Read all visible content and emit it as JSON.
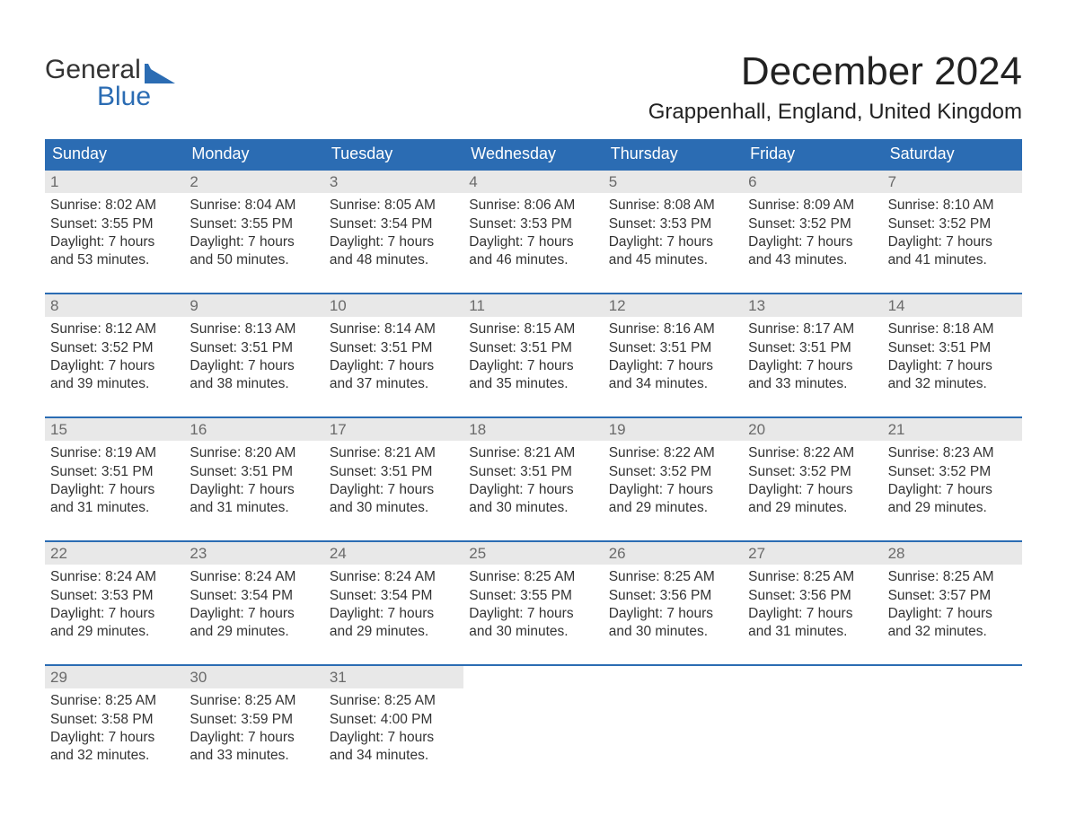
{
  "brand": {
    "word1": "General",
    "word2": "Blue",
    "logo_color": "#2b6cb3"
  },
  "title": "December 2024",
  "location": "Grappenhall, England, United Kingdom",
  "colors": {
    "header_bg": "#2b6cb3",
    "header_text": "#ffffff",
    "daynum_bg": "#e8e8e8",
    "daynum_text": "#6a6a6a",
    "body_text": "#333333",
    "cell_border": "#2b6cb3"
  },
  "days_of_week": [
    "Sunday",
    "Monday",
    "Tuesday",
    "Wednesday",
    "Thursday",
    "Friday",
    "Saturday"
  ],
  "grid": {
    "columns": 7,
    "rows": 5,
    "start_day_index": 0
  },
  "days": [
    {
      "n": 1,
      "sunrise": "8:02 AM",
      "sunset": "3:55 PM",
      "daylight_l1": "Daylight: 7 hours",
      "daylight_l2": "and 53 minutes."
    },
    {
      "n": 2,
      "sunrise": "8:04 AM",
      "sunset": "3:55 PM",
      "daylight_l1": "Daylight: 7 hours",
      "daylight_l2": "and 50 minutes."
    },
    {
      "n": 3,
      "sunrise": "8:05 AM",
      "sunset": "3:54 PM",
      "daylight_l1": "Daylight: 7 hours",
      "daylight_l2": "and 48 minutes."
    },
    {
      "n": 4,
      "sunrise": "8:06 AM",
      "sunset": "3:53 PM",
      "daylight_l1": "Daylight: 7 hours",
      "daylight_l2": "and 46 minutes."
    },
    {
      "n": 5,
      "sunrise": "8:08 AM",
      "sunset": "3:53 PM",
      "daylight_l1": "Daylight: 7 hours",
      "daylight_l2": "and 45 minutes."
    },
    {
      "n": 6,
      "sunrise": "8:09 AM",
      "sunset": "3:52 PM",
      "daylight_l1": "Daylight: 7 hours",
      "daylight_l2": "and 43 minutes."
    },
    {
      "n": 7,
      "sunrise": "8:10 AM",
      "sunset": "3:52 PM",
      "daylight_l1": "Daylight: 7 hours",
      "daylight_l2": "and 41 minutes."
    },
    {
      "n": 8,
      "sunrise": "8:12 AM",
      "sunset": "3:52 PM",
      "daylight_l1": "Daylight: 7 hours",
      "daylight_l2": "and 39 minutes."
    },
    {
      "n": 9,
      "sunrise": "8:13 AM",
      "sunset": "3:51 PM",
      "daylight_l1": "Daylight: 7 hours",
      "daylight_l2": "and 38 minutes."
    },
    {
      "n": 10,
      "sunrise": "8:14 AM",
      "sunset": "3:51 PM",
      "daylight_l1": "Daylight: 7 hours",
      "daylight_l2": "and 37 minutes."
    },
    {
      "n": 11,
      "sunrise": "8:15 AM",
      "sunset": "3:51 PM",
      "daylight_l1": "Daylight: 7 hours",
      "daylight_l2": "and 35 minutes."
    },
    {
      "n": 12,
      "sunrise": "8:16 AM",
      "sunset": "3:51 PM",
      "daylight_l1": "Daylight: 7 hours",
      "daylight_l2": "and 34 minutes."
    },
    {
      "n": 13,
      "sunrise": "8:17 AM",
      "sunset": "3:51 PM",
      "daylight_l1": "Daylight: 7 hours",
      "daylight_l2": "and 33 minutes."
    },
    {
      "n": 14,
      "sunrise": "8:18 AM",
      "sunset": "3:51 PM",
      "daylight_l1": "Daylight: 7 hours",
      "daylight_l2": "and 32 minutes."
    },
    {
      "n": 15,
      "sunrise": "8:19 AM",
      "sunset": "3:51 PM",
      "daylight_l1": "Daylight: 7 hours",
      "daylight_l2": "and 31 minutes."
    },
    {
      "n": 16,
      "sunrise": "8:20 AM",
      "sunset": "3:51 PM",
      "daylight_l1": "Daylight: 7 hours",
      "daylight_l2": "and 31 minutes."
    },
    {
      "n": 17,
      "sunrise": "8:21 AM",
      "sunset": "3:51 PM",
      "daylight_l1": "Daylight: 7 hours",
      "daylight_l2": "and 30 minutes."
    },
    {
      "n": 18,
      "sunrise": "8:21 AM",
      "sunset": "3:51 PM",
      "daylight_l1": "Daylight: 7 hours",
      "daylight_l2": "and 30 minutes."
    },
    {
      "n": 19,
      "sunrise": "8:22 AM",
      "sunset": "3:52 PM",
      "daylight_l1": "Daylight: 7 hours",
      "daylight_l2": "and 29 minutes."
    },
    {
      "n": 20,
      "sunrise": "8:22 AM",
      "sunset": "3:52 PM",
      "daylight_l1": "Daylight: 7 hours",
      "daylight_l2": "and 29 minutes."
    },
    {
      "n": 21,
      "sunrise": "8:23 AM",
      "sunset": "3:52 PM",
      "daylight_l1": "Daylight: 7 hours",
      "daylight_l2": "and 29 minutes."
    },
    {
      "n": 22,
      "sunrise": "8:24 AM",
      "sunset": "3:53 PM",
      "daylight_l1": "Daylight: 7 hours",
      "daylight_l2": "and 29 minutes."
    },
    {
      "n": 23,
      "sunrise": "8:24 AM",
      "sunset": "3:54 PM",
      "daylight_l1": "Daylight: 7 hours",
      "daylight_l2": "and 29 minutes."
    },
    {
      "n": 24,
      "sunrise": "8:24 AM",
      "sunset": "3:54 PM",
      "daylight_l1": "Daylight: 7 hours",
      "daylight_l2": "and 29 minutes."
    },
    {
      "n": 25,
      "sunrise": "8:25 AM",
      "sunset": "3:55 PM",
      "daylight_l1": "Daylight: 7 hours",
      "daylight_l2": "and 30 minutes."
    },
    {
      "n": 26,
      "sunrise": "8:25 AM",
      "sunset": "3:56 PM",
      "daylight_l1": "Daylight: 7 hours",
      "daylight_l2": "and 30 minutes."
    },
    {
      "n": 27,
      "sunrise": "8:25 AM",
      "sunset": "3:56 PM",
      "daylight_l1": "Daylight: 7 hours",
      "daylight_l2": "and 31 minutes."
    },
    {
      "n": 28,
      "sunrise": "8:25 AM",
      "sunset": "3:57 PM",
      "daylight_l1": "Daylight: 7 hours",
      "daylight_l2": "and 32 minutes."
    },
    {
      "n": 29,
      "sunrise": "8:25 AM",
      "sunset": "3:58 PM",
      "daylight_l1": "Daylight: 7 hours",
      "daylight_l2": "and 32 minutes."
    },
    {
      "n": 30,
      "sunrise": "8:25 AM",
      "sunset": "3:59 PM",
      "daylight_l1": "Daylight: 7 hours",
      "daylight_l2": "and 33 minutes."
    },
    {
      "n": 31,
      "sunrise": "8:25 AM",
      "sunset": "4:00 PM",
      "daylight_l1": "Daylight: 7 hours",
      "daylight_l2": "and 34 minutes."
    }
  ],
  "labels": {
    "sunrise_prefix": "Sunrise: ",
    "sunset_prefix": "Sunset: "
  }
}
